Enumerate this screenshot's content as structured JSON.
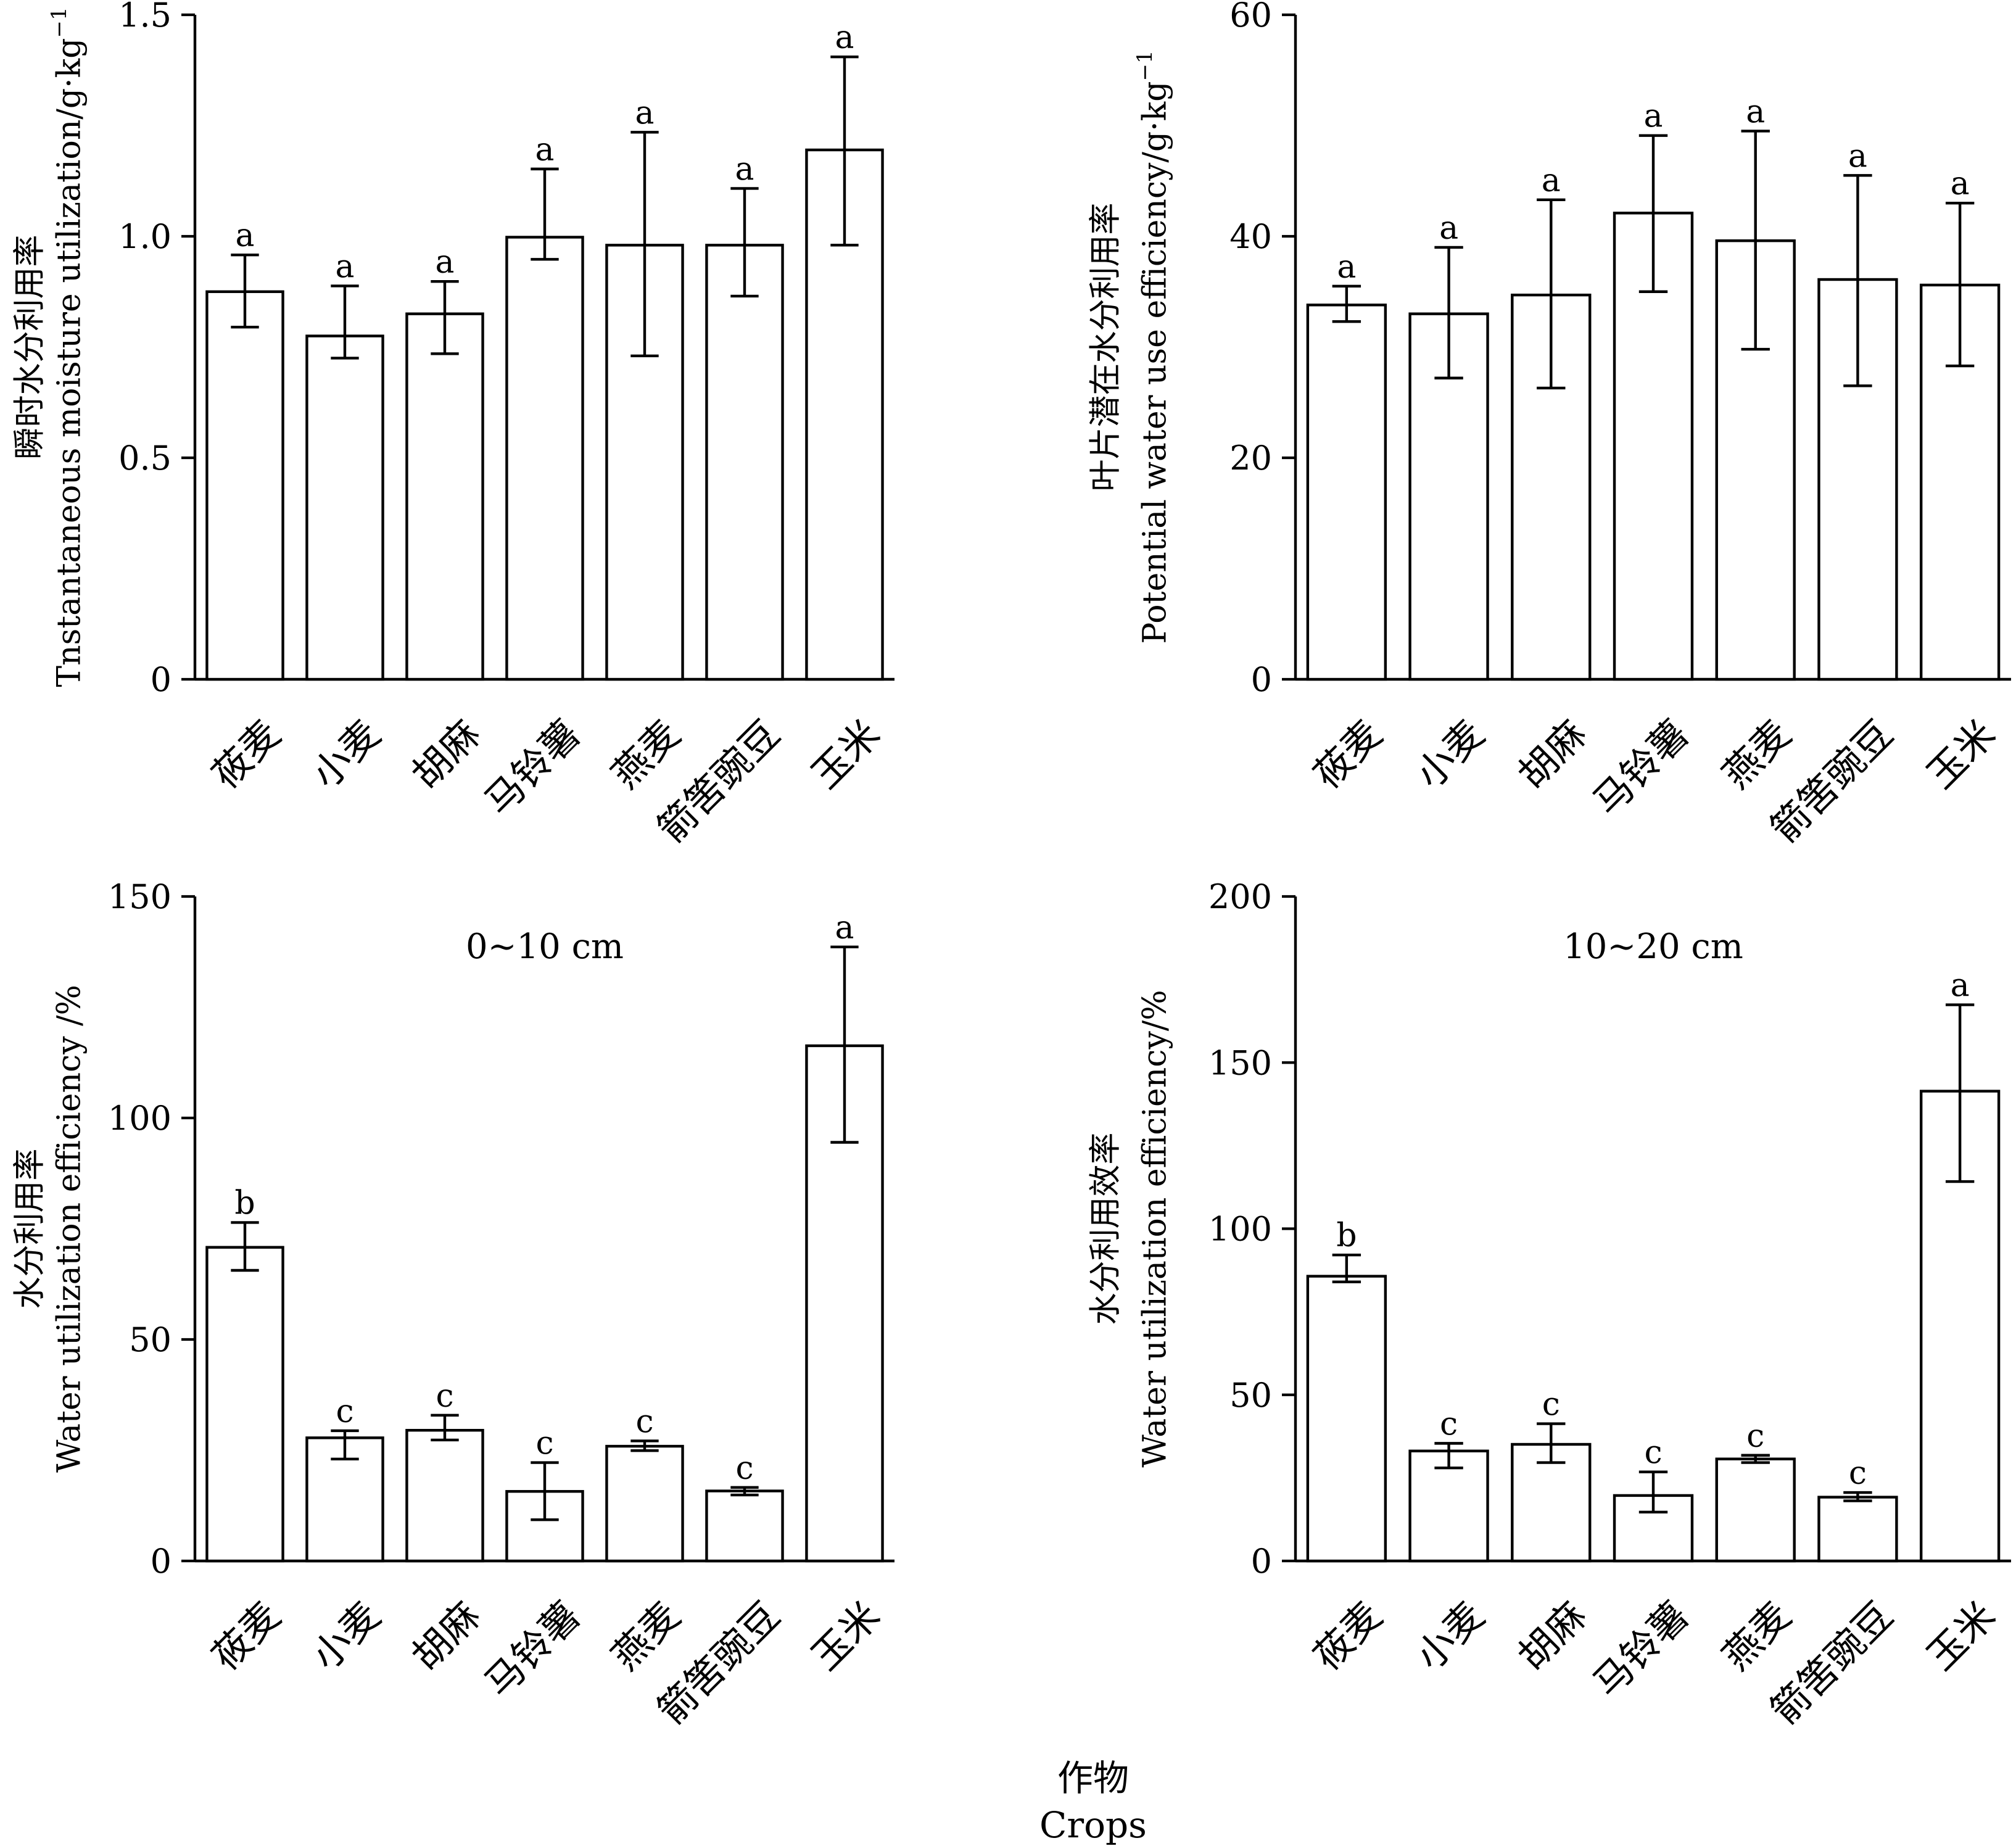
{
  "figure": {
    "xlabel_cn": "作物",
    "xlabel_en": "Crops"
  },
  "chart_data": [
    {
      "type": "bar",
      "ylabel_cn": "瞬时水分利用率",
      "ylabel_en": "Tnstantaneous moisture utilization/g·kg",
      "ylabel_sup": "−1",
      "note": "",
      "ylim": [
        0,
        1.5
      ],
      "yticks": [
        "0",
        "0.5",
        "1.0",
        "1.5"
      ],
      "ytick_values": [
        0,
        0.5,
        1.0,
        1.5
      ],
      "grid": false,
      "categories": [
        "莜麦",
        "小麦",
        "胡麻",
        "马铃薯",
        "燕麦",
        "箭筈豌豆",
        "玉米"
      ],
      "values": [
        0.875,
        0.775,
        0.825,
        0.998,
        0.98,
        0.98,
        1.195
      ],
      "err_low": [
        0.795,
        0.725,
        0.735,
        0.948,
        0.73,
        0.865,
        0.98
      ],
      "err_high": [
        0.958,
        0.888,
        0.898,
        1.152,
        1.235,
        1.108,
        1.405
      ],
      "significance": [
        "a",
        "a",
        "a",
        "a",
        "a",
        "a",
        "a"
      ]
    },
    {
      "type": "bar",
      "ylabel_cn": "叶片潜在水分利用率",
      "ylabel_en": "Potential water use efficiency/g·kg",
      "ylabel_sup": "−1",
      "note": "",
      "ylim": [
        0,
        60
      ],
      "yticks": [
        "0",
        "20",
        "40",
        "60"
      ],
      "ytick_values": [
        0,
        20,
        40,
        60
      ],
      "grid": false,
      "categories": [
        "莜麦",
        "小麦",
        "胡麻",
        "马铃薯",
        "燕麦",
        "箭筈豌豆",
        "玉米"
      ],
      "values": [
        33.8,
        33.0,
        34.7,
        42.1,
        39.6,
        36.1,
        35.6
      ],
      "err_low": [
        32.3,
        27.2,
        26.3,
        35.0,
        29.8,
        26.5,
        28.3
      ],
      "err_high": [
        35.5,
        39.0,
        43.3,
        49.1,
        49.5,
        45.5,
        43.0
      ],
      "significance": [
        "a",
        "a",
        "a",
        "a",
        "a",
        "a",
        "a"
      ]
    },
    {
      "type": "bar",
      "ylabel_cn": "水分利用率",
      "ylabel_en": "Water utilization efficiency /%",
      "ylabel_sup": "",
      "note": "0~10 cm",
      "ylim": [
        0,
        150
      ],
      "yticks": [
        "0",
        "50",
        "100",
        "150"
      ],
      "ytick_values": [
        0,
        50,
        100,
        150
      ],
      "grid": false,
      "categories": [
        "莜麦",
        "小麦",
        "胡麻",
        "马铃薯",
        "燕麦",
        "箭筈豌豆",
        "玉米"
      ],
      "values": [
        70.8,
        27.8,
        29.5,
        15.7,
        25.9,
        15.8,
        116.3
      ],
      "err_low": [
        65.6,
        23.0,
        27.3,
        9.3,
        24.9,
        14.9,
        94.5
      ],
      "err_high": [
        76.4,
        29.4,
        32.9,
        22.2,
        27.1,
        16.6,
        138.6
      ],
      "significance": [
        "b",
        "c",
        "c",
        "c",
        "c",
        "c",
        "a"
      ]
    },
    {
      "type": "bar",
      "ylabel_cn": "水分利用效率",
      "ylabel_en": "Water utilization efficiency/%",
      "ylabel_sup": "",
      "note": "10~20 cm",
      "ylim": [
        0,
        200
      ],
      "yticks": [
        "0",
        "50",
        "100",
        "150",
        "200"
      ],
      "ytick_values": [
        0,
        50,
        100,
        150,
        200
      ],
      "grid": false,
      "categories": [
        "莜麦",
        "小麦",
        "胡麻",
        "马铃薯",
        "燕麦",
        "箭筈豌豆",
        "玉米"
      ],
      "values": [
        85.7,
        33.1,
        35.1,
        19.7,
        30.7,
        19.2,
        141.4
      ],
      "err_low": [
        84.0,
        28.0,
        29.6,
        14.7,
        29.6,
        18.1,
        114.2
      ],
      "err_high": [
        92.1,
        35.4,
        41.3,
        26.8,
        31.8,
        20.6,
        167.4
      ],
      "significance": [
        "b",
        "c",
        "c",
        "c",
        "c",
        "c",
        "a"
      ]
    }
  ]
}
